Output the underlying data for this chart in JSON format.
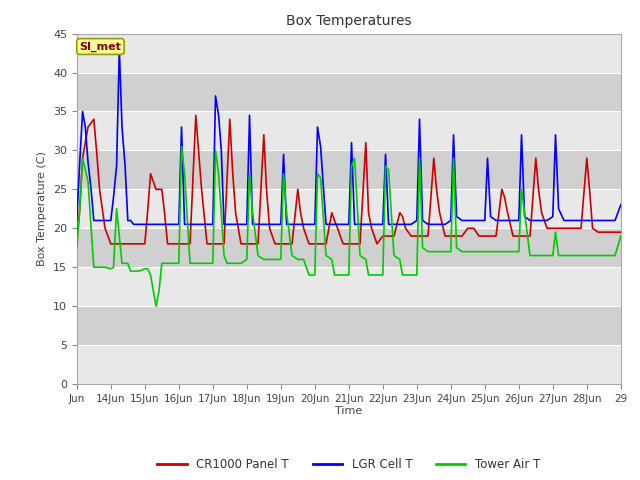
{
  "title": "Box Temperatures",
  "ylabel": "Box Temperature (C)",
  "xlabel": "Time",
  "ylim": [
    0,
    45
  ],
  "background_color": "#ffffff",
  "plot_bg_light": "#e8e8e8",
  "plot_bg_dark": "#d0d0d0",
  "grid_color": "#ffffff",
  "tick_labels_x": [
    "Jun",
    "14Jun",
    "15Jun",
    "16Jun",
    "17Jun",
    "18Jun",
    "19Jun",
    "20Jun",
    "21Jun",
    "22Jun",
    "23Jun",
    "24Jun",
    "25Jun",
    "26Jun",
    "27Jun",
    "28Jun",
    "29"
  ],
  "annotation_text": "SI_met",
  "annotation_bg": "#ffff99",
  "annotation_border": "#999900",
  "series": {
    "CR1000 Panel T": {
      "color": "#cc0000",
      "linewidth": 1.2
    },
    "LGR Cell T": {
      "color": "#0000ff",
      "linewidth": 1.2
    },
    "Tower Air T": {
      "color": "#00cc00",
      "linewidth": 1.2
    }
  },
  "red_x": [
    0.0,
    0.08,
    0.17,
    0.33,
    0.5,
    0.58,
    0.67,
    0.83,
    1.0,
    1.08,
    1.17,
    1.33,
    1.5,
    1.58,
    1.67,
    1.83,
    2.0,
    2.08,
    2.17,
    2.33,
    2.5,
    2.58,
    2.67,
    2.83,
    3.0,
    3.08,
    3.17,
    3.33,
    3.5,
    3.58,
    3.67,
    3.83,
    4.0,
    4.08,
    4.17,
    4.33,
    4.5,
    4.58,
    4.67,
    4.83,
    5.0,
    5.08,
    5.17,
    5.33,
    5.5,
    5.58,
    5.67,
    5.83,
    6.0,
    6.08,
    6.17,
    6.33,
    6.5,
    6.58,
    6.67,
    6.83,
    7.0,
    7.08,
    7.17,
    7.33,
    7.5,
    7.58,
    7.67,
    7.83,
    8.0,
    8.08,
    8.17,
    8.33,
    8.5,
    8.58,
    8.67,
    8.83,
    9.0,
    9.08,
    9.17,
    9.33,
    9.5,
    9.58,
    9.67,
    9.83,
    10.0,
    10.08,
    10.17,
    10.33,
    10.5,
    10.58,
    10.67,
    10.83,
    11.0,
    11.08,
    11.17,
    11.33,
    11.5,
    11.58,
    11.67,
    11.83,
    12.0,
    12.08,
    12.17,
    12.33,
    12.5,
    12.58,
    12.67,
    12.83,
    13.0,
    13.08,
    13.17,
    13.33,
    13.5,
    13.58,
    13.67,
    13.83,
    14.0,
    14.08,
    14.17,
    14.33,
    14.5,
    14.58,
    14.67,
    14.83,
    15.0,
    15.08,
    15.17,
    15.33,
    15.5,
    15.58,
    15.67,
    15.83,
    16.0
  ],
  "red_y": [
    18.5,
    22.0,
    29.0,
    33.0,
    34.0,
    30.0,
    25.0,
    20.0,
    18.0,
    18.0,
    18.0,
    18.0,
    18.0,
    18.0,
    18.0,
    18.0,
    18.0,
    22.0,
    27.0,
    25.0,
    25.0,
    22.0,
    18.0,
    18.0,
    18.0,
    18.0,
    18.0,
    18.0,
    34.5,
    30.0,
    25.0,
    18.0,
    18.0,
    18.0,
    18.0,
    18.0,
    34.0,
    27.5,
    22.0,
    18.0,
    18.0,
    18.0,
    18.0,
    18.0,
    32.0,
    25.0,
    20.0,
    18.0,
    18.0,
    18.0,
    18.0,
    18.0,
    25.0,
    22.0,
    20.0,
    18.0,
    18.0,
    18.0,
    18.0,
    18.0,
    22.0,
    21.0,
    20.0,
    18.0,
    18.0,
    18.0,
    18.0,
    18.0,
    31.0,
    22.0,
    20.0,
    18.0,
    19.0,
    19.0,
    19.0,
    19.0,
    22.0,
    21.5,
    20.0,
    19.0,
    19.0,
    19.0,
    19.0,
    19.0,
    29.0,
    25.0,
    22.0,
    19.0,
    19.0,
    19.0,
    19.0,
    19.0,
    20.0,
    20.0,
    20.0,
    19.0,
    19.0,
    19.0,
    19.0,
    19.0,
    25.0,
    24.0,
    22.0,
    19.0,
    19.0,
    19.0,
    19.0,
    19.0,
    29.0,
    25.0,
    22.0,
    20.0,
    20.0,
    20.0,
    20.0,
    20.0,
    20.0,
    20.0,
    20.0,
    20.0,
    29.0,
    25.0,
    20.0,
    19.5,
    19.5,
    19.5,
    19.5,
    19.5,
    19.5
  ],
  "blue_x": [
    0.0,
    0.08,
    0.17,
    0.25,
    0.33,
    0.42,
    0.5,
    0.58,
    0.67,
    0.83,
    1.0,
    1.08,
    1.17,
    1.25,
    1.33,
    1.42,
    1.5,
    1.58,
    1.67,
    1.83,
    2.0,
    2.08,
    2.17,
    2.33,
    2.5,
    2.58,
    2.67,
    2.83,
    3.0,
    3.08,
    3.17,
    3.33,
    3.5,
    3.58,
    3.67,
    3.83,
    4.0,
    4.08,
    4.17,
    4.25,
    4.33,
    4.42,
    4.5,
    4.58,
    4.67,
    4.83,
    5.0,
    5.08,
    5.17,
    5.33,
    5.5,
    5.58,
    5.67,
    5.83,
    6.0,
    6.08,
    6.17,
    6.33,
    6.5,
    6.58,
    6.67,
    6.83,
    7.0,
    7.08,
    7.17,
    7.33,
    7.5,
    7.58,
    7.67,
    7.83,
    8.0,
    8.08,
    8.17,
    8.33,
    8.5,
    8.58,
    8.67,
    8.83,
    9.0,
    9.08,
    9.17,
    9.33,
    9.5,
    9.58,
    9.67,
    9.83,
    10.0,
    10.08,
    10.17,
    10.33,
    10.5,
    10.58,
    10.67,
    10.83,
    11.0,
    11.08,
    11.17,
    11.33,
    11.5,
    11.58,
    11.67,
    11.83,
    12.0,
    12.08,
    12.17,
    12.33,
    12.5,
    12.58,
    12.67,
    12.83,
    13.0,
    13.08,
    13.17,
    13.33,
    13.5,
    13.58,
    13.67,
    13.83,
    14.0,
    14.08,
    14.17,
    14.33,
    14.5,
    14.58,
    14.67,
    14.83,
    15.0,
    15.08,
    15.17,
    15.33,
    15.5,
    15.58,
    15.67,
    15.83,
    16.0
  ],
  "blue_y": [
    21.0,
    28.0,
    35.0,
    33.0,
    28.5,
    25.0,
    21.0,
    21.0,
    21.0,
    21.0,
    21.0,
    24.0,
    28.0,
    43.0,
    33.0,
    28.0,
    21.0,
    21.0,
    20.5,
    20.5,
    20.5,
    20.5,
    20.5,
    20.5,
    20.5,
    20.5,
    20.5,
    20.5,
    20.5,
    33.0,
    20.5,
    20.5,
    20.5,
    20.5,
    20.5,
    20.5,
    20.5,
    37.0,
    34.5,
    30.0,
    20.5,
    20.5,
    20.5,
    20.5,
    20.5,
    20.5,
    20.5,
    34.5,
    20.5,
    20.5,
    20.5,
    20.5,
    20.5,
    20.5,
    20.5,
    29.5,
    20.5,
    20.5,
    20.5,
    20.5,
    20.5,
    20.5,
    20.5,
    33.0,
    30.5,
    20.5,
    20.5,
    20.5,
    20.5,
    20.5,
    20.5,
    31.0,
    20.5,
    20.5,
    20.5,
    20.5,
    20.5,
    20.5,
    20.5,
    29.5,
    20.5,
    20.5,
    20.5,
    20.5,
    20.5,
    20.5,
    21.0,
    34.0,
    21.0,
    20.5,
    20.5,
    20.5,
    20.5,
    20.5,
    21.0,
    32.0,
    21.5,
    21.0,
    21.0,
    21.0,
    21.0,
    21.0,
    21.0,
    29.0,
    21.5,
    21.0,
    21.0,
    21.0,
    21.0,
    21.0,
    21.0,
    32.0,
    21.5,
    21.0,
    21.0,
    21.0,
    21.0,
    21.0,
    21.5,
    32.0,
    22.5,
    21.0,
    21.0,
    21.0,
    21.0,
    21.0,
    21.0,
    21.0,
    21.0,
    21.0,
    21.0,
    21.0,
    21.0,
    21.0,
    23.0
  ],
  "green_x": [
    0.0,
    0.08,
    0.17,
    0.33,
    0.5,
    0.58,
    0.67,
    0.83,
    1.0,
    1.08,
    1.17,
    1.33,
    1.5,
    1.58,
    1.67,
    1.83,
    2.0,
    2.08,
    2.17,
    2.25,
    2.33,
    2.42,
    2.5,
    2.58,
    2.67,
    2.83,
    3.0,
    3.08,
    3.17,
    3.33,
    3.5,
    3.58,
    3.67,
    3.83,
    4.0,
    4.08,
    4.17,
    4.25,
    4.33,
    4.42,
    4.5,
    4.58,
    4.67,
    4.83,
    5.0,
    5.08,
    5.17,
    5.33,
    5.5,
    5.58,
    5.67,
    5.83,
    6.0,
    6.08,
    6.17,
    6.33,
    6.5,
    6.58,
    6.67,
    6.83,
    7.0,
    7.08,
    7.17,
    7.33,
    7.5,
    7.58,
    7.67,
    7.83,
    8.0,
    8.08,
    8.17,
    8.33,
    8.5,
    8.58,
    8.67,
    8.83,
    9.0,
    9.08,
    9.17,
    9.33,
    9.5,
    9.58,
    9.67,
    9.83,
    10.0,
    10.08,
    10.17,
    10.33,
    10.5,
    10.58,
    10.67,
    10.83,
    11.0,
    11.08,
    11.17,
    11.33,
    11.5,
    11.58,
    11.67,
    11.83,
    12.0,
    12.08,
    12.17,
    12.33,
    12.5,
    12.58,
    12.67,
    12.83,
    13.0,
    13.08,
    13.17,
    13.33,
    13.5,
    13.58,
    13.67,
    13.83,
    14.0,
    14.08,
    14.17,
    14.33,
    14.5,
    14.58,
    14.67,
    14.83,
    15.0,
    15.08,
    15.17,
    15.33,
    15.5,
    15.58,
    15.67,
    15.83,
    16.0
  ],
  "green_y": [
    17.5,
    22.0,
    29.0,
    26.0,
    15.0,
    15.0,
    15.0,
    15.0,
    14.8,
    15.0,
    22.5,
    15.5,
    15.5,
    14.5,
    14.5,
    14.5,
    14.8,
    14.8,
    14.0,
    12.0,
    10.0,
    12.0,
    15.5,
    15.5,
    15.5,
    15.5,
    15.5,
    30.5,
    27.0,
    15.5,
    15.5,
    15.5,
    15.5,
    15.5,
    15.5,
    30.0,
    27.0,
    22.0,
    16.5,
    15.5,
    15.5,
    15.5,
    15.5,
    15.5,
    16.0,
    27.0,
    22.0,
    16.5,
    16.0,
    16.0,
    16.0,
    16.0,
    16.0,
    27.0,
    22.0,
    16.5,
    16.0,
    16.0,
    16.0,
    14.0,
    14.0,
    27.0,
    26.5,
    16.5,
    16.0,
    14.0,
    14.0,
    14.0,
    14.0,
    28.0,
    29.0,
    16.5,
    16.0,
    14.0,
    14.0,
    14.0,
    14.0,
    28.0,
    27.5,
    16.5,
    16.0,
    14.0,
    14.0,
    14.0,
    14.0,
    29.0,
    17.5,
    17.0,
    17.0,
    17.0,
    17.0,
    17.0,
    17.0,
    29.0,
    17.5,
    17.0,
    17.0,
    17.0,
    17.0,
    17.0,
    17.0,
    17.0,
    17.0,
    17.0,
    17.0,
    17.0,
    17.0,
    17.0,
    17.0,
    25.0,
    22.0,
    16.5,
    16.5,
    16.5,
    16.5,
    16.5,
    16.5,
    19.5,
    16.5,
    16.5,
    16.5,
    16.5,
    16.5,
    16.5,
    16.5,
    16.5,
    16.5,
    16.5,
    16.5,
    16.5,
    16.5,
    16.5,
    19.0
  ]
}
